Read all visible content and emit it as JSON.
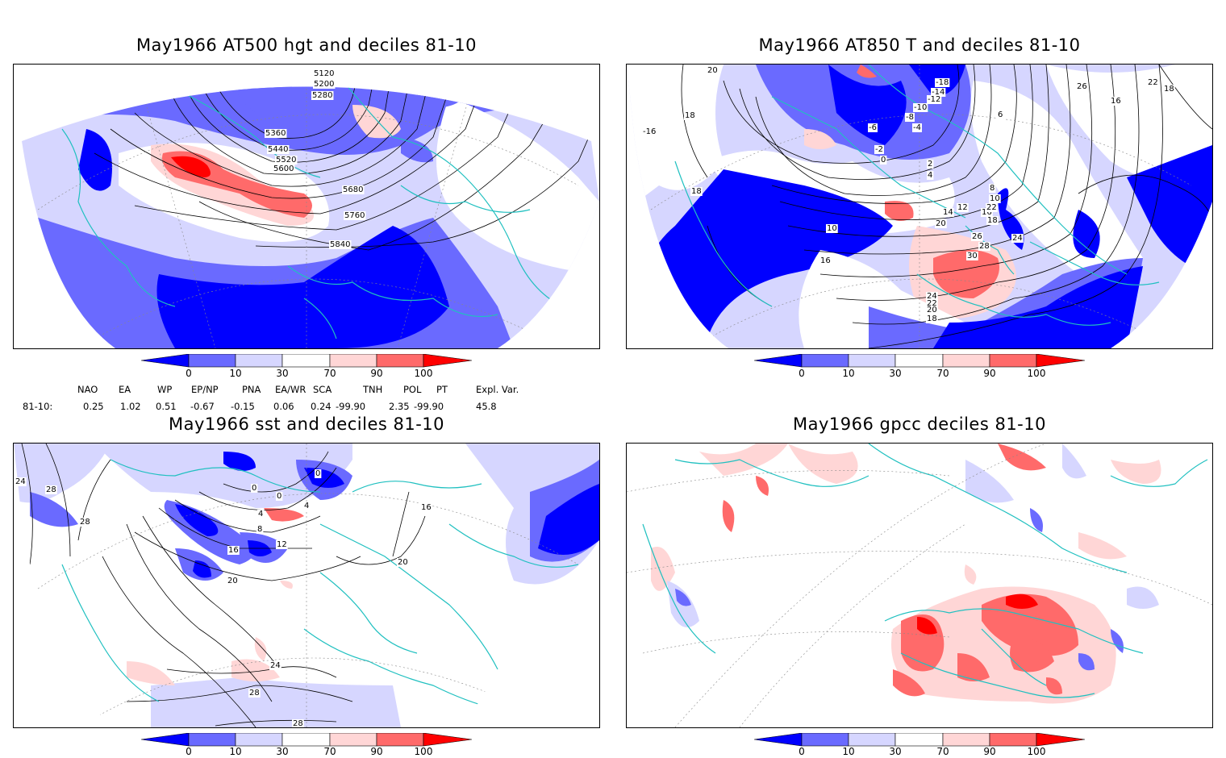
{
  "panels": [
    {
      "id": "p1",
      "title": "May1966 AT500 hgt and deciles 81-10",
      "contour_labels": [
        "5120",
        "5200",
        "5280",
        "5360",
        "5440",
        "5520",
        "5600",
        "5680",
        "5760",
        "5840"
      ]
    },
    {
      "id": "p2",
      "title": "May1966 AT850 T and deciles 81-10",
      "contour_labels": [
        "20",
        "18",
        "-16",
        "16",
        "18",
        "10",
        "-18",
        "-14",
        "-12",
        "-10",
        "-8",
        "-6",
        "-4",
        "-2",
        "0",
        "2",
        "4",
        "6",
        "8",
        "10",
        "12",
        "14",
        "16",
        "18",
        "20",
        "22",
        "24",
        "26",
        "28",
        "30",
        "26",
        "22",
        "18",
        "24",
        "22",
        "20",
        "18",
        "16"
      ]
    },
    {
      "id": "p3",
      "title": "May1966 sst and deciles 81-10",
      "contour_labels": [
        "24",
        "28",
        "28",
        "0",
        "0",
        "0",
        "4",
        "4",
        "8",
        "12",
        "16",
        "20",
        "20",
        "24",
        "28",
        "28",
        "16"
      ]
    },
    {
      "id": "p4",
      "title": "May1966 gpcc deciles 81-10",
      "contour_labels": []
    }
  ],
  "colorbar": {
    "ticks": [
      "0",
      "10",
      "30",
      "70",
      "90",
      "100"
    ],
    "colors": {
      "dark_blue": "#0000ff",
      "mid_blue": "#6a6aff",
      "light_blue": "#d6d6ff",
      "white": "#ffffff",
      "light_red": "#ffd6d6",
      "mid_red": "#ff6a6a",
      "dark_red": "#ff0000"
    }
  },
  "indices": {
    "header": [
      "NAO",
      "EA",
      "WP",
      "EP/NP",
      "PNA",
      "EA/WR",
      "SCA",
      "TNH",
      "POL",
      "PT",
      "Expl. Var."
    ],
    "row_label": "81-10:",
    "values": [
      "0.25",
      "1.02",
      "0.51",
      "-0.67",
      "-0.15",
      "0.06",
      "0.24",
      "-99.90",
      "2.35",
      "-99.90",
      "45.8"
    ]
  },
  "coast_color": "#20c0c0"
}
